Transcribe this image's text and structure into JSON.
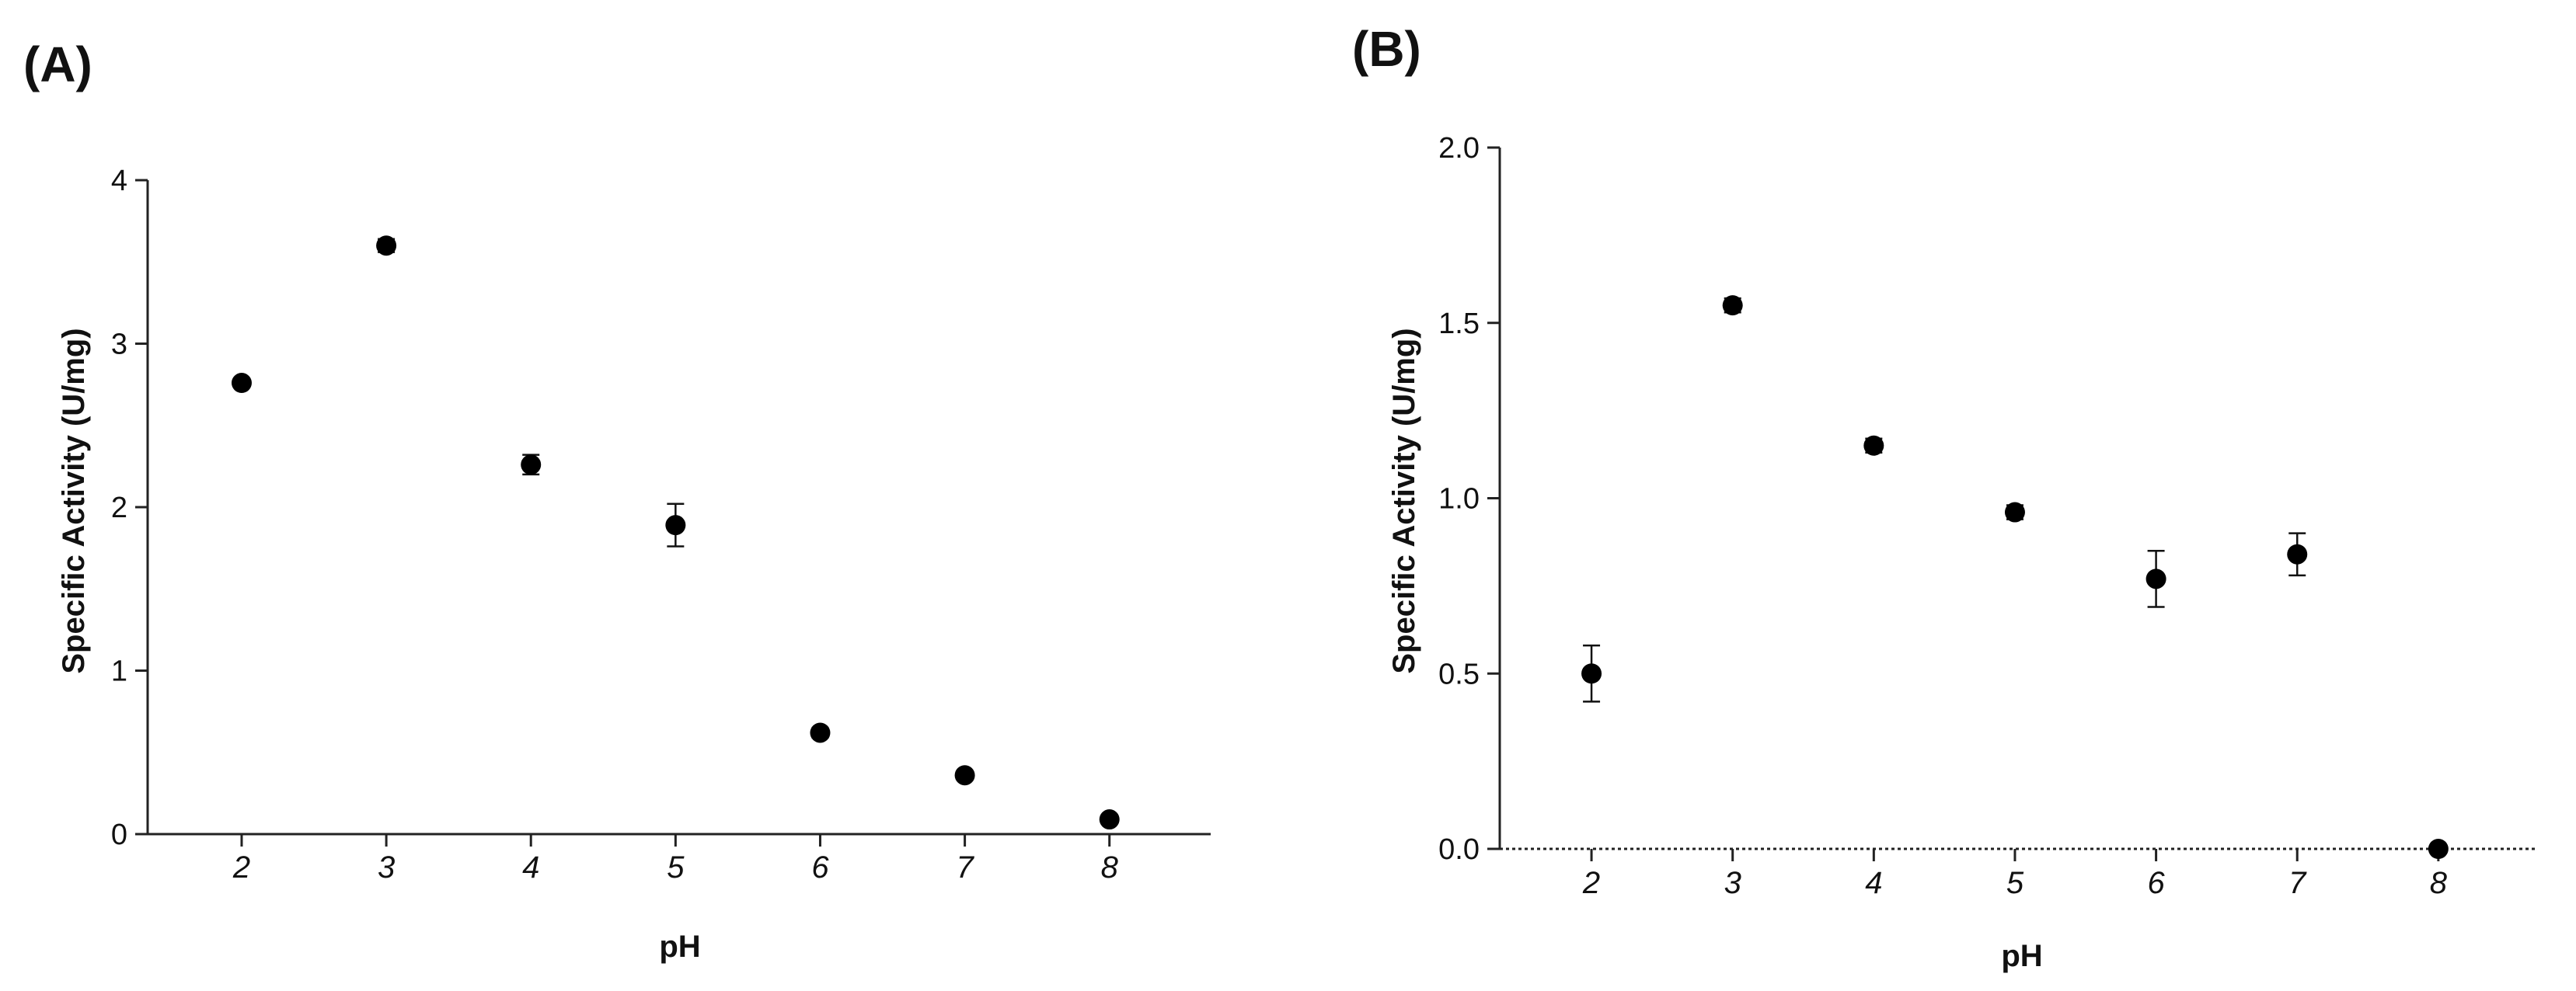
{
  "chart_data": [
    {
      "panel": "(A)",
      "type": "scatter",
      "xlabel": "pH",
      "ylabel": "Specific Activity (U/mg)",
      "x": [
        2,
        3,
        4,
        5,
        6,
        7,
        8
      ],
      "xticks": [
        "2",
        "3",
        "4",
        "5",
        "6",
        "7",
        "8"
      ],
      "xlim": [
        1.35,
        8.7
      ],
      "ylim": [
        0,
        4
      ],
      "yticks": [
        "0",
        "1",
        "2",
        "3",
        "4"
      ],
      "ytick_values": [
        0,
        1,
        2,
        3,
        4
      ],
      "series": [
        {
          "values": [
            2.76,
            3.6,
            2.26,
            1.89,
            0.62,
            0.36,
            0.09
          ],
          "errors": [
            0.02,
            0.04,
            0.06,
            0.13,
            0.03,
            0.02,
            0.01
          ],
          "color": "#000000"
        }
      ],
      "grid": false,
      "zero_line": false
    },
    {
      "panel": "(B)",
      "type": "scatter",
      "xlabel": "pH",
      "ylabel": "Specific Activity (U/mg)",
      "x": [
        2,
        3,
        4,
        5,
        6,
        7,
        8
      ],
      "xticks": [
        "2",
        "3",
        "4",
        "5",
        "6",
        "7",
        "8"
      ],
      "xlim": [
        1.35,
        8.7
      ],
      "ylim": [
        0,
        2.0
      ],
      "yticks": [
        "0.0",
        "0.5",
        "1.0",
        "1.5",
        "2.0"
      ],
      "ytick_values": [
        0,
        0.5,
        1.0,
        1.5,
        2.0
      ],
      "series": [
        {
          "values": [
            0.5,
            1.55,
            1.15,
            0.96,
            0.77,
            0.84,
            0.0
          ],
          "errors": [
            0.08,
            0.02,
            0.02,
            0.02,
            0.08,
            0.06,
            0.0
          ],
          "color": "#000000"
        }
      ],
      "grid": false,
      "zero_line": true
    }
  ]
}
